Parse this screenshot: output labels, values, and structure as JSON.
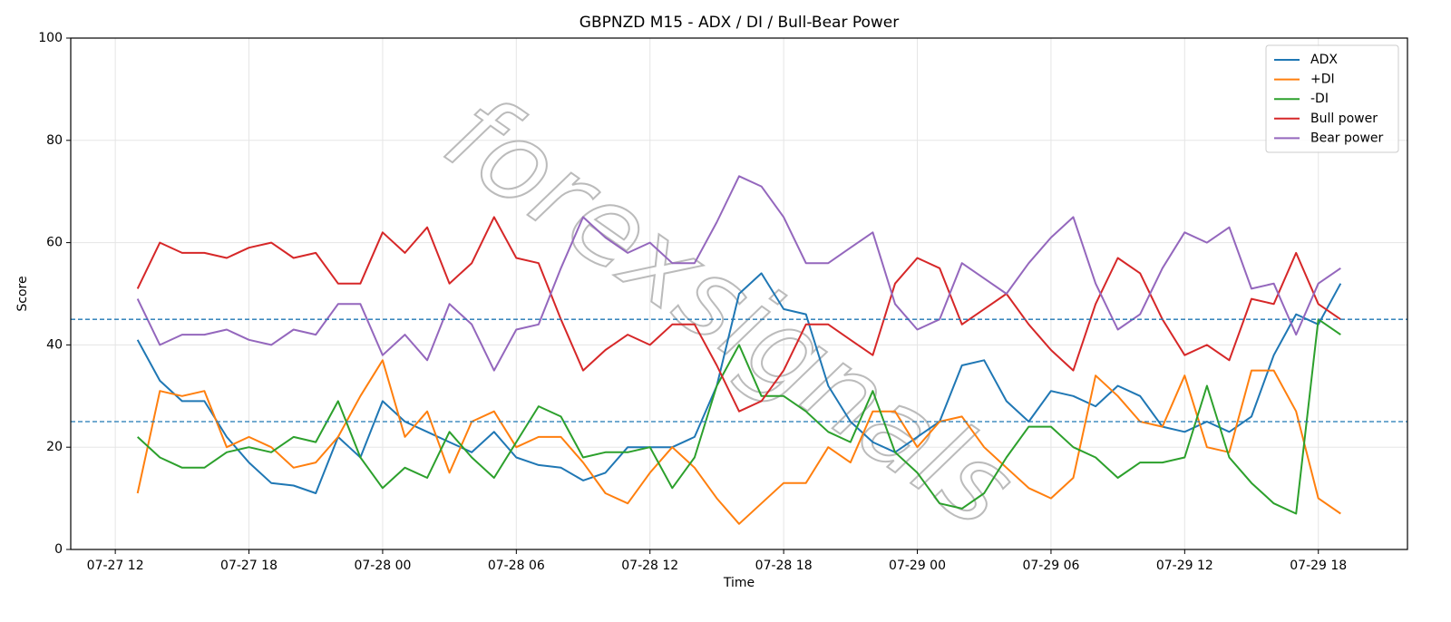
{
  "chart_data": {
    "type": "line",
    "title": "GBPNZD M15 - ADX / DI / Bull-Bear Power",
    "x_label": "Time",
    "y_label": "Score",
    "watermark": "forexsignals",
    "x": [
      "07-27 13",
      "07-27 14",
      "07-27 15",
      "07-27 16",
      "07-27 17",
      "07-27 18",
      "07-27 19",
      "07-27 20",
      "07-27 21",
      "07-27 22",
      "07-27 23",
      "07-28 00",
      "07-28 01",
      "07-28 02",
      "07-28 03",
      "07-28 04",
      "07-28 05",
      "07-28 06",
      "07-28 07",
      "07-28 08",
      "07-28 09",
      "07-28 10",
      "07-28 11",
      "07-28 12",
      "07-28 13",
      "07-28 14",
      "07-28 15",
      "07-28 16",
      "07-28 17",
      "07-28 18",
      "07-28 19",
      "07-28 20",
      "07-28 21",
      "07-28 22",
      "07-28 23",
      "07-29 00",
      "07-29 01",
      "07-29 02",
      "07-29 03",
      "07-29 04",
      "07-29 05",
      "07-29 06",
      "07-29 07",
      "07-29 08",
      "07-29 09",
      "07-29 10",
      "07-29 11",
      "07-29 12",
      "07-29 13",
      "07-29 14",
      "07-29 15",
      "07-29 16",
      "07-29 17",
      "07-29 18",
      "07-29 19"
    ],
    "xlim": [
      "07-27 10",
      "07-29 22"
    ],
    "xticks": [
      "07-27 12",
      "07-27 18",
      "07-28 00",
      "07-28 06",
      "07-28 12",
      "07-28 18",
      "07-29 00",
      "07-29 06",
      "07-29 12",
      "07-29 18"
    ],
    "ylim": [
      0,
      100
    ],
    "yticks": [
      0,
      20,
      40,
      60,
      80,
      100
    ],
    "grid": true,
    "reference_lines": [
      45,
      25
    ],
    "reference_line_color": "#1f77b4",
    "legend": "upper right",
    "series": [
      {
        "name": "ADX",
        "color": "#1f77b4",
        "values": [
          41,
          33,
          29,
          29,
          22,
          17,
          13,
          12.5,
          11,
          22,
          18,
          29,
          25,
          23,
          21,
          19,
          23,
          18,
          16.5,
          16,
          13.5,
          15,
          20,
          20,
          20,
          22,
          32,
          50,
          54,
          47,
          46,
          32,
          25,
          21,
          19,
          22,
          25,
          36,
          37,
          29,
          25,
          31,
          30,
          28,
          32,
          30,
          24,
          23,
          25,
          23,
          26,
          38,
          46,
          44,
          52
        ]
      },
      {
        "name": "+DI",
        "color": "#ff7f0e",
        "values": [
          11,
          31,
          30,
          31,
          20,
          22,
          20,
          16,
          17,
          22,
          30,
          37,
          22,
          27,
          15,
          25,
          27,
          20,
          22,
          22,
          17,
          11,
          9,
          15,
          20,
          16,
          10,
          5,
          9,
          13,
          13,
          20,
          17,
          27,
          27,
          20,
          25,
          26,
          20,
          16,
          12,
          10,
          14,
          34,
          30,
          25,
          24,
          34,
          20,
          19,
          35,
          35,
          27,
          10,
          7
        ]
      },
      {
        "name": "-DI",
        "color": "#2ca02c",
        "values": [
          22,
          18,
          16,
          16,
          19,
          20,
          19,
          22,
          21,
          29,
          18,
          12,
          16,
          14,
          23,
          18,
          14,
          21,
          28,
          26,
          18,
          19,
          19,
          20,
          12,
          18,
          32,
          40,
          30,
          30,
          27,
          23,
          21,
          31,
          19,
          15,
          9,
          8,
          11,
          18,
          24,
          24,
          20,
          18,
          14,
          17,
          17,
          18,
          32,
          18,
          13,
          9,
          7,
          45,
          42
        ]
      },
      {
        "name": "Bull power",
        "color": "#d62728",
        "values": [
          51,
          60,
          58,
          58,
          57,
          59,
          60,
          57,
          58,
          52,
          52,
          62,
          58,
          63,
          52,
          56,
          65,
          57,
          56,
          45,
          35,
          39,
          42,
          40,
          44,
          44,
          36,
          27,
          29,
          35,
          44,
          44,
          41,
          38,
          52,
          57,
          55,
          44,
          47,
          50,
          44,
          39,
          35,
          48,
          57,
          54,
          45,
          38,
          40,
          37,
          49,
          48,
          58,
          48,
          45
        ]
      },
      {
        "name": "Bear power",
        "color": "#9467bd",
        "values": [
          49,
          40,
          42,
          42,
          43,
          41,
          40,
          43,
          42,
          48,
          48,
          38,
          42,
          37,
          48,
          44,
          35,
          43,
          44,
          55,
          65,
          61,
          58,
          60,
          56,
          56,
          64,
          73,
          71,
          65,
          56,
          56,
          59,
          62,
          48,
          43,
          45,
          56,
          53,
          50,
          56,
          61,
          65,
          52,
          43,
          46,
          55,
          62,
          60,
          63,
          51,
          52,
          42,
          52,
          55
        ]
      }
    ]
  }
}
